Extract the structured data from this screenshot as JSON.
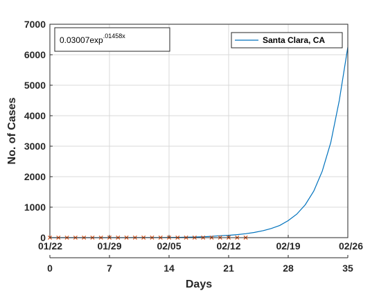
{
  "chart_data": {
    "type": "line",
    "xlabel": "Days",
    "ylabel": "No. of Cases",
    "xlim": [
      0,
      35
    ],
    "ylim": [
      0,
      7000
    ],
    "grid": true,
    "x_ticks": [
      0,
      7,
      14,
      21,
      28,
      35
    ],
    "y_ticks": [
      0,
      1000,
      2000,
      3000,
      4000,
      5000,
      6000,
      7000
    ],
    "date_ticks": [
      "01/22",
      "01/29",
      "02/05",
      "02/12",
      "02/19",
      "02/26"
    ],
    "legend_placement": "top-right",
    "annotation": {
      "base": "0.03007exp",
      "exponent": ".01458x"
    },
    "series": [
      {
        "name": "Santa Clara, CA",
        "kind": "line",
        "color": "#0072BD",
        "x": [
          0,
          1,
          2,
          3,
          4,
          5,
          6,
          7,
          8,
          9,
          10,
          11,
          12,
          13,
          14,
          15,
          16,
          17,
          18,
          19,
          20,
          21,
          22,
          23,
          24,
          25,
          26,
          27,
          28,
          29,
          30,
          31,
          32,
          33,
          34,
          35
        ],
        "y": [
          0.03,
          0.04,
          0.06,
          0.09,
          0.13,
          0.2,
          0.29,
          0.43,
          0.63,
          0.92,
          1.4,
          2.0,
          2.9,
          4.3,
          6.3,
          9.3,
          13.6,
          20,
          29,
          43,
          63,
          78,
          100,
          130,
          170,
          225,
          300,
          400,
          560,
          770,
          1080,
          1530,
          2180,
          3120,
          4500,
          6250
        ]
      },
      {
        "name": "",
        "kind": "markers",
        "marker": "x",
        "color": "#D95319",
        "x": [
          0,
          1,
          2,
          3,
          4,
          5,
          6,
          7,
          8,
          9,
          10,
          11,
          12,
          13,
          14,
          15,
          16,
          17,
          18,
          19,
          20,
          21,
          22,
          23
        ],
        "y": [
          0,
          0,
          0,
          0,
          0,
          0,
          0,
          1,
          1,
          1,
          1,
          1,
          1,
          1,
          1,
          1,
          1,
          1,
          1,
          1,
          1,
          1,
          1,
          1
        ]
      }
    ]
  }
}
